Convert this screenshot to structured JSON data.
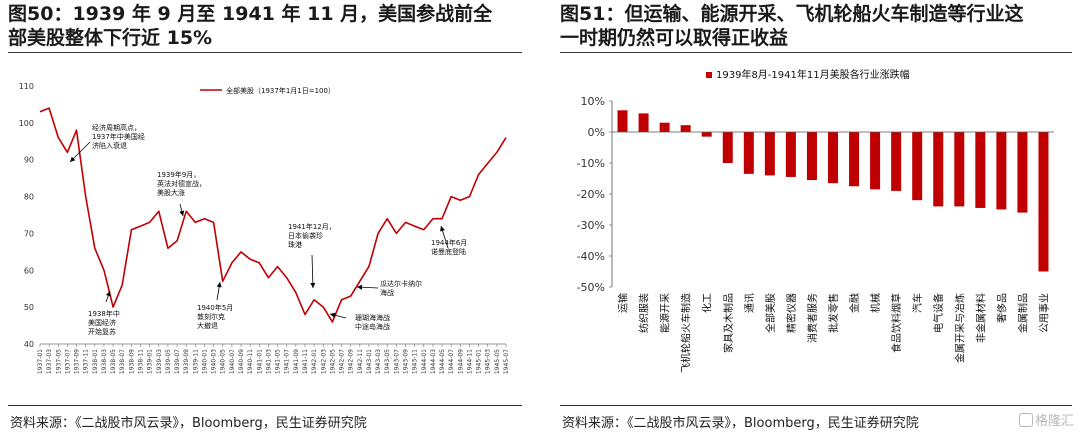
{
  "left": {
    "title_line1": "图50：1939 年 9 月至 1941 年 11 月，美国参战前全",
    "title_line2": "部美股整体下行近 15%",
    "source": "资料来源：《二战股市风云录》，Bloomberg，民生证券研究院"
  },
  "right": {
    "title_line1": "图51：但运输、能源开采、飞机轮船火车制造等行业这",
    "title_line2": "一时期仍然可以取得正收益",
    "source": "资料来源：《二战股市风云录》，Bloomberg，民生证券研究院"
  },
  "watermark": "格隆汇",
  "chart_data": [
    {
      "type": "line",
      "legend_position": "top-right",
      "grid": false,
      "ylim": [
        40,
        110
      ],
      "yticks": [
        40,
        50,
        60,
        70,
        80,
        90,
        100,
        110
      ],
      "color": "#c00000",
      "series": [
        {
          "name": "全部美股（1937年1月1日=100）",
          "x": [
            "1937-01",
            "1937-03",
            "1937-05",
            "1937-07",
            "1937-09",
            "1937-11",
            "1938-01",
            "1938-03",
            "1938-05",
            "1938-07",
            "1938-09",
            "1938-11",
            "1939-01",
            "1939-03",
            "1939-05",
            "1939-07",
            "1939-09",
            "1939-11",
            "1940-01",
            "1940-03",
            "1940-05",
            "1940-07",
            "1940-09",
            "1940-11",
            "1941-01",
            "1941-03",
            "1941-05",
            "1941-07",
            "1941-09",
            "1941-11",
            "1942-01",
            "1942-03",
            "1942-05",
            "1942-07",
            "1942-09",
            "1942-11",
            "1943-01",
            "1943-03",
            "1943-05",
            "1943-07",
            "1943-09",
            "1943-11",
            "1944-01",
            "1944-03",
            "1944-05",
            "1944-07",
            "1944-09",
            "1944-11",
            "1945-01",
            "1945-03",
            "1945-05",
            "1945-07"
          ],
          "values": [
            103,
            104,
            96,
            92,
            98,
            80,
            66,
            60,
            50,
            56,
            71,
            72,
            73,
            76,
            66,
            68,
            76,
            73,
            74,
            73,
            57,
            62,
            65,
            63,
            62,
            58,
            61,
            58,
            54,
            48,
            52,
            50,
            46,
            52,
            53,
            57,
            61,
            70,
            74,
            70,
            73,
            72,
            71,
            74,
            74,
            80,
            79,
            80,
            86,
            89,
            92,
            96
          ]
        }
      ],
      "x_tick_labels": [
        "1937-01",
        "1937-03",
        "1937-05",
        "1937-07",
        "1937-09",
        "1937-11",
        "1938-01",
        "1938-03",
        "1938-05",
        "1938-07",
        "1938-09",
        "1938-11",
        "1939-01",
        "1939-03",
        "1939-05",
        "1939-07",
        "1939-09",
        "1939-11",
        "1940-01",
        "1940-03",
        "1940-05",
        "1940-07",
        "1940-09",
        "1940-11",
        "1941-01",
        "1941-03",
        "1941-05",
        "1941-07",
        "1941-09",
        "1941-11",
        "1942-01",
        "1942-03",
        "1942-05",
        "1942-07",
        "1942-09",
        "1942-11",
        "1943-01",
        "1943-03",
        "1943-05",
        "1943-07",
        "1943-09",
        "1943-11",
        "1944-01",
        "1944-03",
        "1944-05",
        "1944-07",
        "1944-09",
        "1944-11",
        "1945-01",
        "1945-03",
        "1945-05",
        "1945-07"
      ],
      "annotations": [
        {
          "text": "经济周期高点，\n1937年中美国经\n济陷入衰退",
          "x_index": 5
        },
        {
          "text": "1938年中\n美国经济\n开始复苏",
          "x_index": 9
        },
        {
          "text": "1939年9月，\n英法对德宣战，\n美股大涨",
          "x_index": 16
        },
        {
          "text": "1940年5月\n敦刻尔克\n大撤退",
          "x_index": 20
        },
        {
          "text": "1941年12月，\n日本偷袭珍\n珠港",
          "x_index": 29
        },
        {
          "text": "瓜达尔卡纳尔\n海战",
          "x_index": 36
        },
        {
          "text": "珊瑚海海战\n中途岛海战",
          "x_index": 32
        },
        {
          "text": "1944年6月\n诺曼底登陆",
          "x_index": 45
        }
      ]
    },
    {
      "type": "bar",
      "legend_position": "top",
      "grid": false,
      "ylim": [
        -50,
        10
      ],
      "yticks": [
        10,
        0,
        -10,
        -20,
        -30,
        -40,
        -50
      ],
      "ytick_format": "percent",
      "color": "#c00000",
      "series": [
        {
          "name": "1939年8月-1941年11月美股各行业涨跌幅",
          "values": [
            7,
            6,
            3,
            2.2,
            -1.5,
            -10,
            -13.5,
            -14,
            -14.5,
            -15.5,
            -16.5,
            -17.5,
            -18.5,
            -19,
            -22,
            -24,
            -24,
            -24.5,
            -25,
            -26,
            -45
          ]
        }
      ],
      "categories": [
        "运输",
        "纺织服装",
        "能源开采",
        "飞机轮船火车制造",
        "化工",
        "家具及木制品",
        "通讯",
        "全部美股",
        "精密仪器",
        "消费者服务",
        "批发零售",
        "金融",
        "机械",
        "食品饮料烟草",
        "汽车",
        "电气设备",
        "金属开采与冶炼",
        "非金属材料",
        "奢侈品",
        "金属制品",
        "公用事业"
      ]
    }
  ]
}
